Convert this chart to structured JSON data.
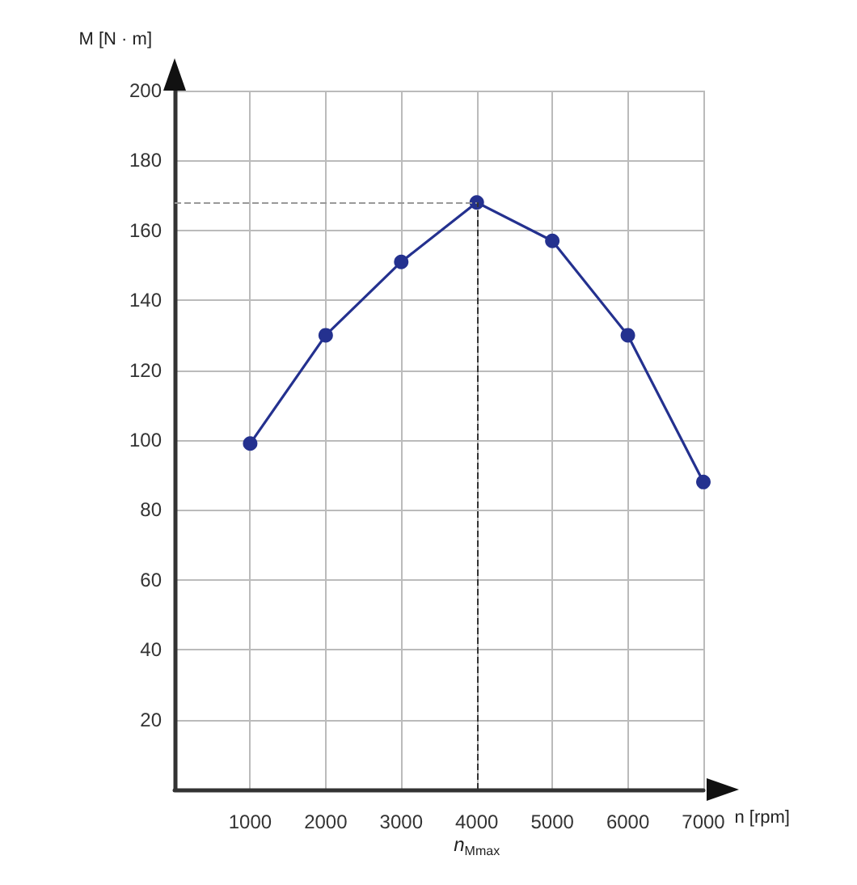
{
  "chart_data": {
    "type": "line",
    "xlabel": "n [rpm]",
    "ylabel": "M [N · m]",
    "x": [
      1000,
      2000,
      3000,
      4000,
      5000,
      6000,
      7000
    ],
    "series": [
      {
        "color": "#24318f",
        "values": [
          99,
          130,
          151,
          168,
          157,
          130,
          88
        ]
      }
    ],
    "xlim": [
      0,
      7000
    ],
    "xticks": [
      1000,
      2000,
      3000,
      4000,
      5000,
      6000,
      7000
    ],
    "ylim": [
      0,
      200
    ],
    "yticks": [
      20,
      40,
      60,
      80,
      100,
      120,
      140,
      160,
      180,
      200
    ],
    "ref_lines": [
      {
        "axis": "x",
        "value": 4000,
        "label": "n$_{Mmax}$",
        "line_style": "dashed",
        "color": "#333333"
      },
      {
        "axis": "y",
        "value": 168,
        "label": null,
        "line_style": "dashed",
        "color": "#999999"
      }
    ],
    "grid": true,
    "marker": "circle",
    "line_style": "solid"
  }
}
